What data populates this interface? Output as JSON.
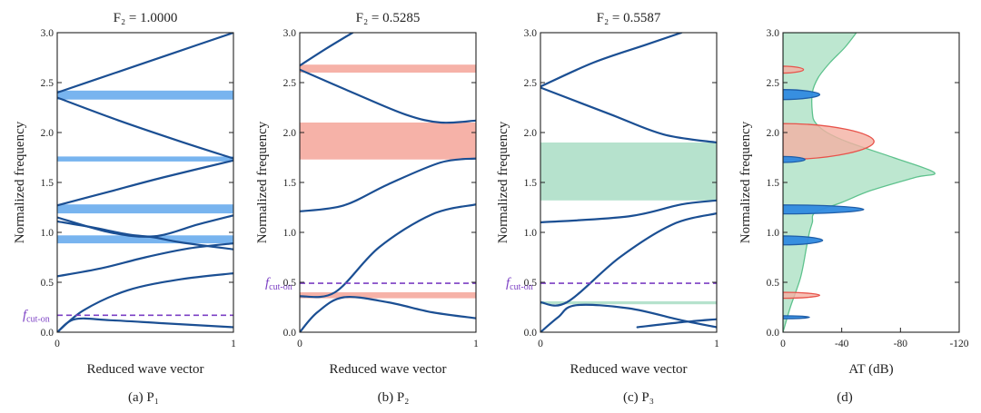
{
  "figure": {
    "width": 1080,
    "height": 455
  },
  "colors": {
    "curve": "#1b4f93",
    "dash": "#7b3fc4",
    "band_blue": "#78b4ef",
    "band_red": "#f6b2a8",
    "band_green": "#b6e2cd",
    "green_fill": "#b9e6cd",
    "green_stroke": "#5ec28d",
    "red_fill": "#f4b0a2",
    "red_stroke": "#e8524a",
    "blue_fill": "#2f8ae0",
    "blue_stroke": "#1f5ea8"
  },
  "chart_data": [
    {
      "type": "line",
      "id": "a",
      "title": "F₂ = 1.0000",
      "caption": "(a)  P₁",
      "xlabel": "Reduced wave vector",
      "ylabel": "Normalized frequency",
      "xlim": [
        0,
        1
      ],
      "ylim": [
        0,
        3
      ],
      "xticks": [
        "0",
        "1"
      ],
      "yticks": [
        "0.0",
        "0.5",
        "1.0",
        "1.5",
        "2.0",
        "2.5",
        "3.0"
      ],
      "cutoff": {
        "label_main": "f",
        "label_sub": "cut-on",
        "y": 0.17
      },
      "bands": [
        {
          "y0": 2.33,
          "y1": 2.42,
          "color": "band_blue"
        },
        {
          "y0": 1.71,
          "y1": 1.76,
          "color": "band_blue"
        },
        {
          "y0": 1.19,
          "y1": 1.28,
          "color": "band_blue"
        },
        {
          "y0": 0.89,
          "y1": 0.97,
          "color": "band_blue"
        }
      ],
      "series": [
        {
          "x": [
            0,
            0.1,
            0.3,
            0.6,
            1
          ],
          "y": [
            0.0,
            0.13,
            0.12,
            0.09,
            0.05
          ]
        },
        {
          "x": [
            0,
            0.15,
            0.4,
            0.7,
            1
          ],
          "y": [
            0.0,
            0.22,
            0.42,
            0.53,
            0.59
          ]
        },
        {
          "x": [
            0,
            0.25,
            0.5,
            0.75,
            1
          ],
          "y": [
            0.56,
            0.64,
            0.75,
            0.84,
            0.89
          ]
        },
        {
          "x": [
            0,
            0.2,
            0.4,
            0.55,
            0.7,
            1
          ],
          "y": [
            1.11,
            1.05,
            0.98,
            0.95,
            0.9,
            0.83
          ]
        },
        {
          "x": [
            0,
            0.3,
            0.55,
            0.8,
            1
          ],
          "y": [
            1.15,
            1.0,
            0.96,
            1.08,
            1.17
          ]
        },
        {
          "x": [
            0,
            0.3,
            0.6,
            1
          ],
          "y": [
            1.27,
            1.41,
            1.55,
            1.72
          ]
        },
        {
          "x": [
            0,
            0.35,
            0.7,
            1
          ],
          "y": [
            2.35,
            2.12,
            1.91,
            1.74
          ]
        },
        {
          "x": [
            0,
            0.35,
            0.7,
            1
          ],
          "y": [
            2.4,
            2.61,
            2.82,
            3.0
          ]
        }
      ]
    },
    {
      "type": "line",
      "id": "b",
      "title": "F₂ = 0.5285",
      "caption": "(b)  P₂",
      "xlabel": "Reduced wave vector",
      "ylabel": "Normalized frequency",
      "xlim": [
        0,
        1
      ],
      "ylim": [
        0,
        3
      ],
      "xticks": [
        "0",
        "1"
      ],
      "yticks": [
        "0.0",
        "0.5",
        "1.0",
        "1.5",
        "2.0",
        "2.5",
        "3.0"
      ],
      "cutoff": {
        "label_main": "f",
        "label_sub": "cut-on",
        "y": 0.49
      },
      "bands": [
        {
          "y0": 2.6,
          "y1": 2.68,
          "color": "band_red"
        },
        {
          "y0": 1.73,
          "y1": 2.1,
          "color": "band_red"
        },
        {
          "y0": 0.34,
          "y1": 0.4,
          "color": "band_red"
        }
      ],
      "series": [
        {
          "x": [
            0,
            0.1,
            0.25,
            0.5,
            0.75,
            1
          ],
          "y": [
            0.0,
            0.2,
            0.35,
            0.3,
            0.2,
            0.14
          ]
        },
        {
          "x": [
            0,
            0.2,
            0.45,
            0.75,
            1
          ],
          "y": [
            0.36,
            0.4,
            0.85,
            1.18,
            1.28
          ]
        },
        {
          "x": [
            0,
            0.25,
            0.5,
            0.8,
            1
          ],
          "y": [
            1.21,
            1.27,
            1.48,
            1.7,
            1.74
          ]
        },
        {
          "x": [
            0,
            0.3,
            0.6,
            0.8,
            1
          ],
          "y": [
            2.63,
            2.4,
            2.18,
            2.1,
            2.12
          ]
        },
        {
          "x": [
            0,
            0.15,
            0.3
          ],
          "y": [
            2.67,
            2.84,
            3.0
          ]
        }
      ]
    },
    {
      "type": "line",
      "id": "c",
      "title": "F₂ = 0.5587",
      "caption": "(c)  P₃",
      "xlabel": "Reduced wave vector",
      "ylabel": "Normalized frequency",
      "xlim": [
        0,
        1
      ],
      "ylim": [
        0,
        3
      ],
      "xticks": [
        "0",
        "1"
      ],
      "yticks": [
        "0.0",
        "0.5",
        "1.0",
        "1.5",
        "2.0",
        "2.5",
        "3.0"
      ],
      "cutoff": {
        "label_main": "f",
        "label_sub": "cut-on",
        "y": 0.49
      },
      "bands": [
        {
          "y0": 1.32,
          "y1": 1.9,
          "color": "band_green"
        },
        {
          "y0": 0.28,
          "y1": 0.31,
          "color": "band_green"
        }
      ],
      "series": [
        {
          "x": [
            0,
            0.1,
            0.2,
            0.5,
            0.8,
            1
          ],
          "y": [
            0.0,
            0.15,
            0.27,
            0.24,
            0.12,
            0.05
          ]
        },
        {
          "x": [
            0,
            0.15,
            0.45,
            0.75,
            1
          ],
          "y": [
            0.3,
            0.3,
            0.75,
            1.08,
            1.19
          ]
        },
        {
          "x": [
            0,
            0.5,
            0.8,
            1
          ],
          "y": [
            1.1,
            1.16,
            1.28,
            1.32
          ]
        },
        {
          "x": [
            0,
            0.4,
            0.7,
            1
          ],
          "y": [
            2.45,
            2.18,
            1.98,
            1.9
          ]
        },
        {
          "x": [
            0,
            0.3,
            0.6,
            0.8
          ],
          "y": [
            2.46,
            2.7,
            2.88,
            3.0
          ]
        },
        {
          "x": [
            0.55,
            0.8,
            1
          ],
          "y": [
            0.05,
            0.1,
            0.13
          ]
        }
      ]
    },
    {
      "type": "area",
      "id": "d",
      "title": "",
      "caption": "(d)",
      "xlabel": "AT (dB)",
      "ylabel": "Normalized frequency",
      "xlim": [
        0,
        -120
      ],
      "ylim": [
        0,
        3
      ],
      "xticks": [
        "0",
        "-40",
        "-80",
        "-120"
      ],
      "xtick_values": [
        0,
        -40,
        -80,
        -120
      ],
      "yticks": [
        "0.0",
        "0.5",
        "1.0",
        "1.5",
        "2.0",
        "2.5",
        "3.0"
      ],
      "green_region": {
        "x": [
          0,
          -5,
          -12,
          -16,
          -18,
          -20,
          -22,
          -40,
          -60,
          -90,
          -103,
          -75,
          -45,
          -30,
          -22,
          -20,
          -20,
          -24,
          -32,
          -42,
          -50,
          0
        ],
        "y": [
          0.0,
          0.25,
          0.55,
          0.85,
          1.0,
          1.1,
          1.2,
          1.3,
          1.42,
          1.55,
          1.6,
          1.75,
          1.9,
          2.0,
          2.1,
          2.2,
          2.4,
          2.55,
          2.7,
          2.85,
          3.0,
          3.0
        ]
      },
      "peaks": [
        {
          "y": 2.63,
          "depth": -14,
          "half_height": 0.035,
          "color": "red"
        },
        {
          "y": 2.38,
          "depth": -25,
          "half_height": 0.05,
          "color": "blue"
        },
        {
          "y": 1.91,
          "depth": -62,
          "half_height": 0.18,
          "color": "red"
        },
        {
          "y": 1.73,
          "depth": -15,
          "half_height": 0.03,
          "color": "blue"
        },
        {
          "y": 1.23,
          "depth": -55,
          "half_height": 0.045,
          "color": "blue"
        },
        {
          "y": 0.92,
          "depth": -27,
          "half_height": 0.045,
          "color": "blue"
        },
        {
          "y": 0.37,
          "depth": -25,
          "half_height": 0.03,
          "color": "red"
        },
        {
          "y": 0.15,
          "depth": -18,
          "half_height": 0.015,
          "color": "blue"
        }
      ]
    }
  ]
}
